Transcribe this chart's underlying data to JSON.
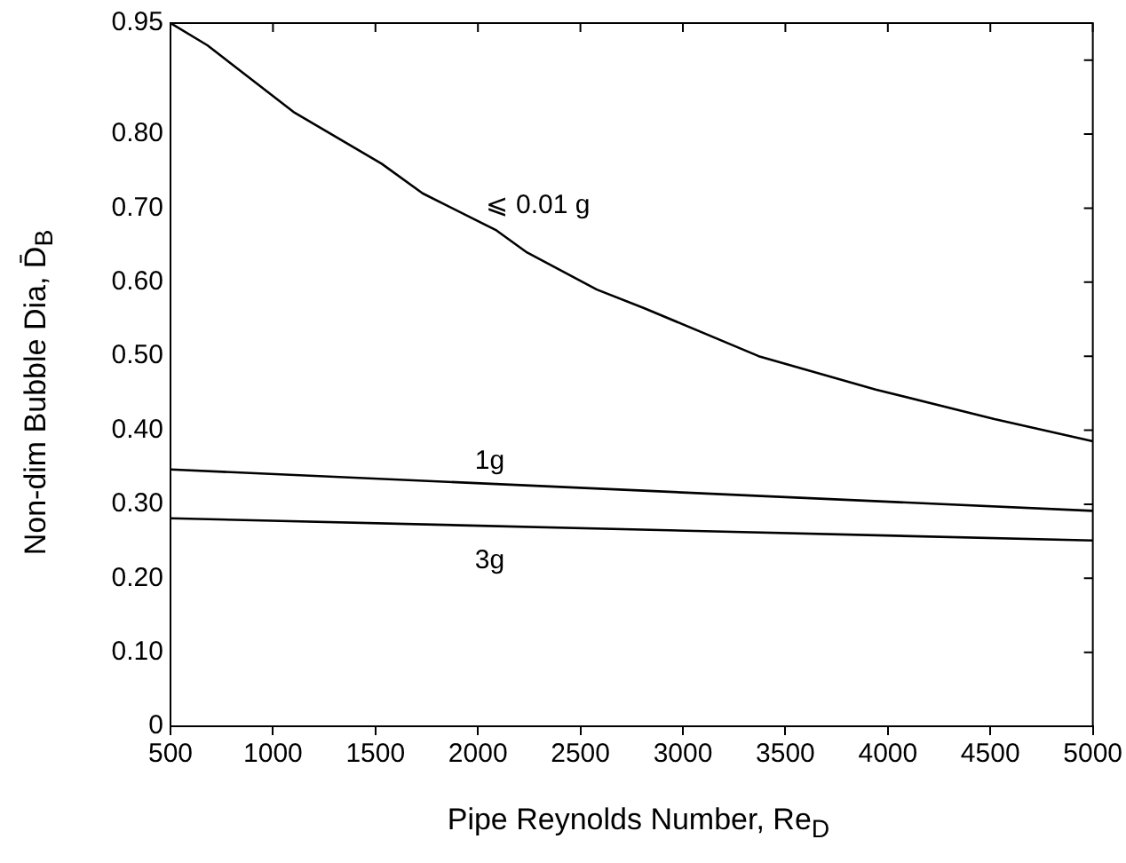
{
  "chart_data": {
    "type": "line",
    "xlabel": "Pipe Reynolds Number, Re$_{D}$",
    "ylabel": "Non-dim Bubble Dia, D̄$_{B}$",
    "xlim": [
      500,
      5000
    ],
    "xticks": [
      500,
      1000,
      1500,
      2000,
      2500,
      3000,
      3500,
      4000,
      4500,
      5000
    ],
    "ylim": [
      0,
      0.95
    ],
    "yticks": [
      0,
      {
        "value": 0.1,
        "label": "0.10"
      },
      {
        "value": 0.2,
        "label": "0.20"
      },
      {
        "value": 0.3,
        "label": "0.30"
      },
      {
        "value": 0.4,
        "label": "0.40"
      },
      {
        "value": 0.5,
        "label": "0.50"
      },
      {
        "value": 0.6,
        "label": "0.60"
      },
      {
        "value": 0.7,
        "label": "0.70"
      },
      {
        "value": 0.8,
        "label": "0.80"
      },
      {
        "value": 0.9,
        "label": null
      },
      0.95
    ],
    "grid": false,
    "legend": false,
    "marker": "none",
    "line_style": "solid",
    "series": [
      {
        "name": "⩽ 0.01 g",
        "color": "#000000",
        "x": [
          500,
          680,
          1100,
          1530,
          1730,
          2090,
          2240,
          2580,
          2810,
          3370,
          3940,
          4520,
          5000
        ],
        "values": [
          0.95,
          0.92,
          0.83,
          0.76,
          0.72,
          0.67,
          0.64,
          0.59,
          0.565,
          0.5,
          0.455,
          0.415,
          0.385
        ]
      },
      {
        "name": "1g",
        "color": "#000000",
        "x": [
          500,
          5000
        ],
        "values": [
          0.347,
          0.291
        ]
      },
      {
        "name": "3g",
        "color": "#000000",
        "x": [
          500,
          5000
        ],
        "values": [
          0.281,
          0.251
        ]
      }
    ]
  }
}
